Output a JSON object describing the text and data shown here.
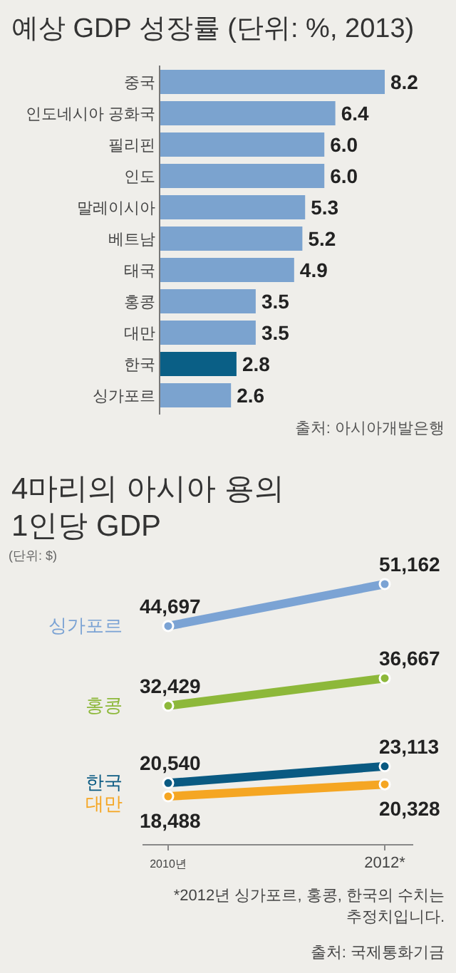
{
  "chart_data": [
    {
      "type": "bar",
      "orientation": "horizontal",
      "title": "예상 GDP 성장률 (단위: %, 2013)",
      "categories": [
        "중국",
        "인도네시아 공화국",
        "필리핀",
        "인도",
        "말레이시아",
        "베트남",
        "태국",
        "홍콩",
        "대만",
        "한국",
        "싱가포르"
      ],
      "values": [
        8.2,
        6.4,
        6.0,
        6.0,
        5.3,
        5.2,
        4.9,
        3.5,
        3.5,
        2.8,
        2.6
      ],
      "colors": [
        "#7ba3cf",
        "#7ba3cf",
        "#7ba3cf",
        "#7ba3cf",
        "#7ba3cf",
        "#7ba3cf",
        "#7ba3cf",
        "#7ba3cf",
        "#7ba3cf",
        "#0a5f86",
        "#7ba3cf"
      ],
      "value_labels": [
        "8.2",
        "6.4",
        "6.0",
        "6.0",
        "5.3",
        "5.2",
        "4.9",
        "3.5",
        "3.5",
        "2.8",
        "2.6"
      ],
      "annotations": [
        "출처: 아시아개발은행"
      ]
    },
    {
      "type": "line",
      "title": "4마리의 아시아 용의 1인당 GDP",
      "ylabel": "(단위: $)",
      "categories": [
        "2010년",
        "2012*"
      ],
      "marker": "circle",
      "series": [
        {
          "name": "싱가포르",
          "color": "#7ba3d4",
          "values": [
            44697,
            51162
          ],
          "value_labels": [
            "44,697",
            "51,162"
          ]
        },
        {
          "name": "홍콩",
          "color": "#8db83a",
          "values": [
            32429,
            36667
          ],
          "value_labels": [
            "32,429",
            "36,667"
          ]
        },
        {
          "name": "한국",
          "color": "#0a5a82",
          "values": [
            20540,
            23113
          ],
          "value_labels": [
            "20,540",
            "23,113"
          ]
        },
        {
          "name": "대만",
          "color": "#f5a623",
          "values": [
            18488,
            20328
          ],
          "value_labels": [
            "18,488",
            "20,328"
          ]
        }
      ],
      "annotations": [
        "*2012년 싱가포르, 홍콩, 한국의 수치는 추정치입니다.",
        "출처: 국제통화기금"
      ]
    }
  ]
}
